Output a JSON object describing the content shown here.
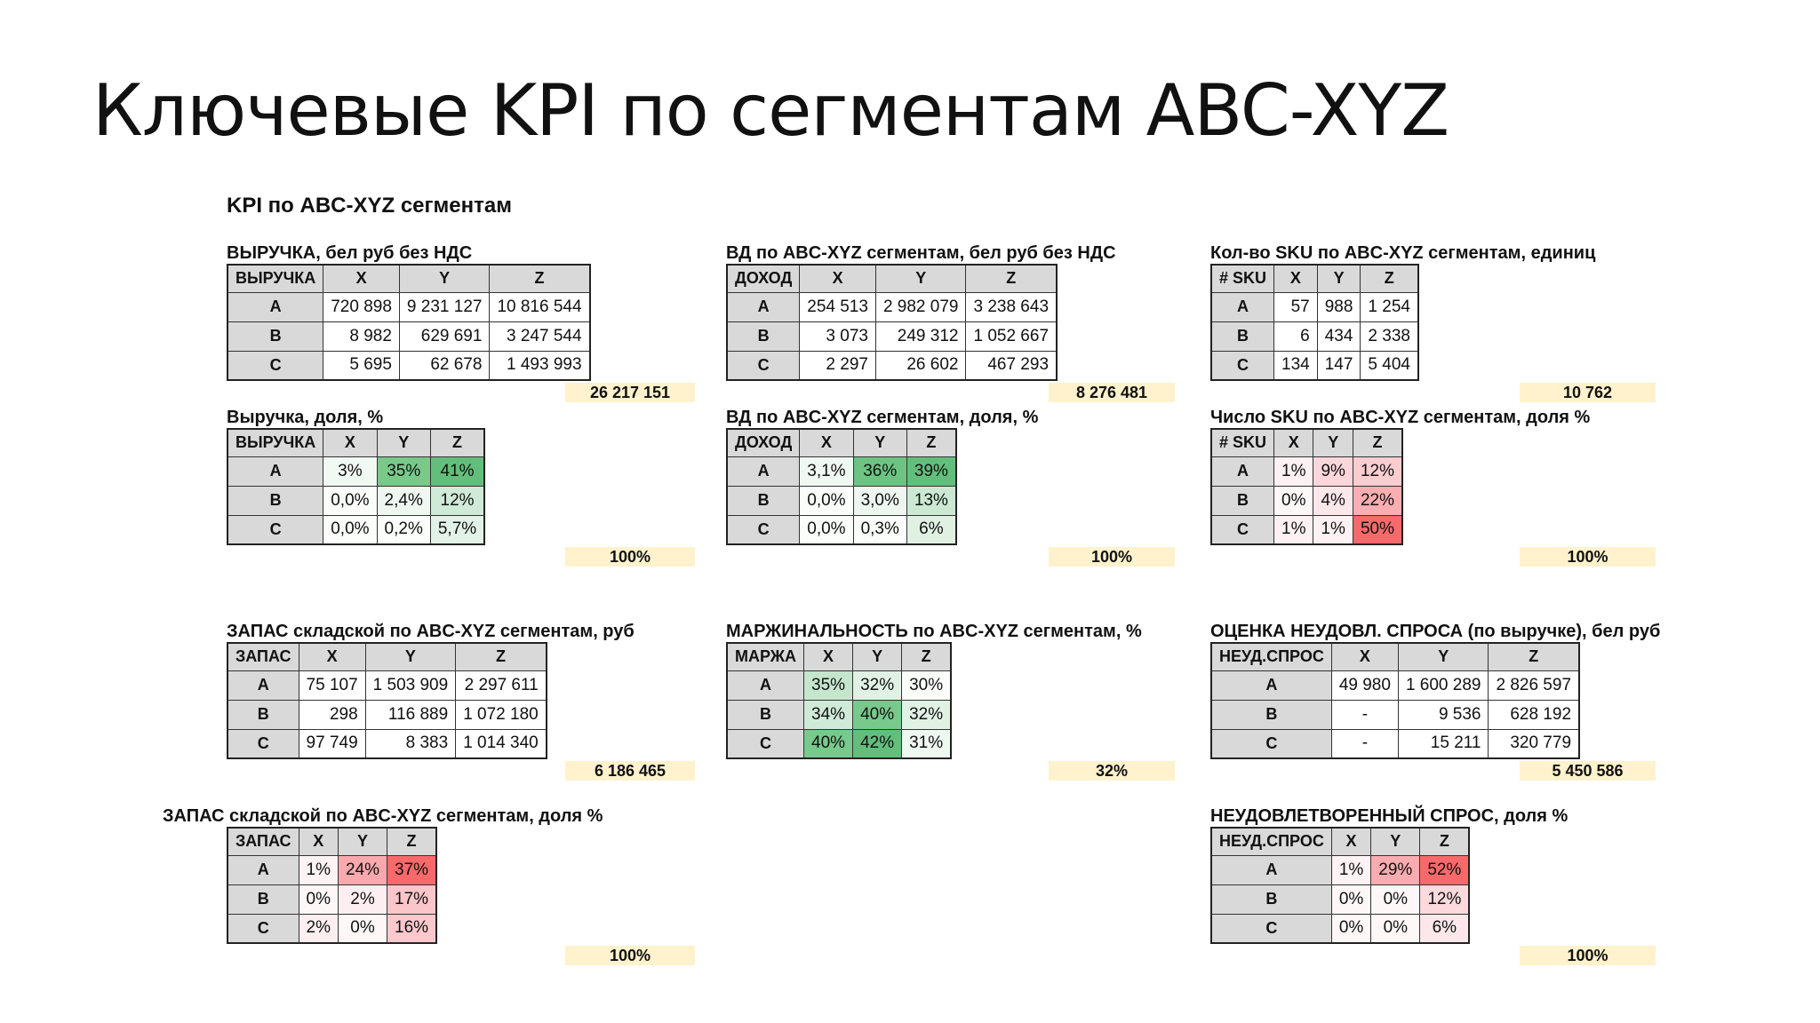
{
  "slide_title": "Ключевые KPI по сегментам ABC-XYZ",
  "sheet_title": "KPI по ABC-XYZ сегментам",
  "colors": {
    "header_bg": "#d9d9d9",
    "total_bg": "#fff2cc",
    "green_scale": "#63be7b",
    "red_scale": "#f8696b"
  },
  "tables": [
    {
      "title": "ВЫРУЧКА, бел руб без НДС",
      "corner": "ВЫРУЧКА",
      "cols": [
        "X",
        "Y",
        "Z"
      ],
      "align": "num",
      "rows": [
        {
          "label": "A",
          "cells": [
            "720 898",
            "9 231 127",
            "10 816 544"
          ]
        },
        {
          "label": "B",
          "cells": [
            "8 982",
            "629 691",
            "3 247 544"
          ]
        },
        {
          "label": "C",
          "cells": [
            "5 695",
            "62 678",
            "1 493 993"
          ]
        }
      ],
      "bg": [
        [
          "#ffffff",
          "#ffffff",
          "#ffffff"
        ],
        [
          "#ffffff",
          "#ffffff",
          "#ffffff"
        ],
        [
          "#ffffff",
          "#ffffff",
          "#ffffff"
        ]
      ],
      "total": "26 217 151"
    },
    {
      "title": "ВД по ABC-XYZ сегментам, бел руб без НДС",
      "corner": "ДОХОД",
      "cols": [
        "X",
        "Y",
        "Z"
      ],
      "align": "num",
      "rows": [
        {
          "label": "A",
          "cells": [
            "254 513",
            "2 982 079",
            "3 238 643"
          ]
        },
        {
          "label": "B",
          "cells": [
            "3 073",
            "249 312",
            "1 052 667"
          ]
        },
        {
          "label": "C",
          "cells": [
            "2 297",
            "26 602",
            "467 293"
          ]
        }
      ],
      "bg": [
        [
          "#ffffff",
          "#ffffff",
          "#ffffff"
        ],
        [
          "#ffffff",
          "#ffffff",
          "#ffffff"
        ],
        [
          "#ffffff",
          "#ffffff",
          "#ffffff"
        ]
      ],
      "total": "8 276 481"
    },
    {
      "title": "Кол-во SKU по ABC-XYZ сегментам, единиц",
      "corner": "# SKU",
      "cols": [
        "X",
        "Y",
        "Z"
      ],
      "align": "num",
      "rows": [
        {
          "label": "A",
          "cells": [
            "57",
            "988",
            "1 254"
          ]
        },
        {
          "label": "B",
          "cells": [
            "6",
            "434",
            "2 338"
          ]
        },
        {
          "label": "C",
          "cells": [
            "134",
            "147",
            "5 404"
          ]
        }
      ],
      "bg": [
        [
          "#ffffff",
          "#ffffff",
          "#ffffff"
        ],
        [
          "#ffffff",
          "#ffffff",
          "#ffffff"
        ],
        [
          "#ffffff",
          "#ffffff",
          "#ffffff"
        ]
      ],
      "total": "10 762"
    },
    {
      "title": "Выручка, доля, %",
      "corner": "ВЫРУЧКА",
      "cols": [
        "X",
        "Y",
        "Z"
      ],
      "align": "ctr",
      "rows": [
        {
          "label": "A",
          "cells": [
            "3%",
            "35%",
            "41%"
          ]
        },
        {
          "label": "B",
          "cells": [
            "0,0%",
            "2,4%",
            "12%"
          ]
        },
        {
          "label": "C",
          "cells": [
            "0,0%",
            "0,2%",
            "5,7%"
          ]
        }
      ],
      "bg": [
        [
          "#f1f9f3",
          "#79c98a",
          "#63be7b"
        ],
        [
          "#fbfdfb",
          "#eef7f0",
          "#cfead6"
        ],
        [
          "#fbfdfb",
          "#fbfdfb",
          "#e2f2e6"
        ]
      ],
      "total": "100%"
    },
    {
      "title": "ВД по ABC-XYZ сегментам, доля, %",
      "corner": "ДОХОД",
      "cols": [
        "X",
        "Y",
        "Z"
      ],
      "align": "ctr",
      "rows": [
        {
          "label": "A",
          "cells": [
            "3,1%",
            "36%",
            "39%"
          ]
        },
        {
          "label": "B",
          "cells": [
            "0,0%",
            "3,0%",
            "13%"
          ]
        },
        {
          "label": "C",
          "cells": [
            "0,0%",
            "0,3%",
            "6%"
          ]
        }
      ],
      "bg": [
        [
          "#f0f8f2",
          "#6dc482",
          "#63be7b"
        ],
        [
          "#fbfdfb",
          "#edf7ef",
          "#cbe8d3"
        ],
        [
          "#fbfdfb",
          "#fbfdfb",
          "#e0f1e4"
        ]
      ],
      "total": "100%"
    },
    {
      "title": "Число SKU по ABC-XYZ сегментам, доля %",
      "corner": "# SKU",
      "cols": [
        "X",
        "Y",
        "Z"
      ],
      "align": "ctr",
      "rows": [
        {
          "label": "A",
          "cells": [
            "1%",
            "9%",
            "12%"
          ]
        },
        {
          "label": "B",
          "cells": [
            "0%",
            "4%",
            "22%"
          ]
        },
        {
          "label": "C",
          "cells": [
            "1%",
            "1%",
            "50%"
          ]
        }
      ],
      "bg": [
        [
          "#fdf1f3",
          "#fbd6da",
          "#fbcdd1"
        ],
        [
          "#fdf7f8",
          "#fce7ea",
          "#f9aeb2"
        ],
        [
          "#fdf1f3",
          "#fdf1f3",
          "#f8696b"
        ]
      ],
      "total": "100%"
    },
    {
      "title": "ЗАПАС складской по ABC-XYZ сегментам, руб",
      "corner": "ЗАПАС",
      "cols": [
        "X",
        "Y",
        "Z"
      ],
      "align": "num",
      "rows": [
        {
          "label": "A",
          "cells": [
            "75 107",
            "1 503 909",
            "2 297 611"
          ]
        },
        {
          "label": "B",
          "cells": [
            "298",
            "116 889",
            "1 072 180"
          ]
        },
        {
          "label": "C",
          "cells": [
            "97 749",
            "8 383",
            "1 014 340"
          ]
        }
      ],
      "bg": [
        [
          "#ffffff",
          "#ffffff",
          "#ffffff"
        ],
        [
          "#ffffff",
          "#ffffff",
          "#ffffff"
        ],
        [
          "#ffffff",
          "#ffffff",
          "#ffffff"
        ]
      ],
      "total": "6 186 465"
    },
    {
      "title": "МАРЖИНАЛЬНОСТЬ по ABC-XYZ сегментам, %",
      "corner": "МАРЖА",
      "cols": [
        "X",
        "Y",
        "Z"
      ],
      "align": "ctr",
      "rows": [
        {
          "label": "A",
          "cells": [
            "35%",
            "32%",
            "30%"
          ]
        },
        {
          "label": "B",
          "cells": [
            "34%",
            "40%",
            "32%"
          ]
        },
        {
          "label": "C",
          "cells": [
            "40%",
            "42%",
            "31%"
          ]
        }
      ],
      "bg": [
        [
          "#c5e6cd",
          "#e1f2e5",
          "#fbfdfb"
        ],
        [
          "#cfead6",
          "#78c98c",
          "#e1f2e5"
        ],
        [
          "#78c98c",
          "#63be7b",
          "#eef7f0"
        ]
      ],
      "total": "32%"
    },
    {
      "title": "ОЦЕНКА НЕУДОВЛ. СПРОСА (по выручке), бел руб",
      "corner": "НЕУД.СПРОС",
      "cols": [
        "X",
        "Y",
        "Z"
      ],
      "align": "num",
      "rows": [
        {
          "label": "A",
          "cells": [
            "49 980",
            "1 600 289",
            "2 826 597"
          ]
        },
        {
          "label": "B",
          "cells": [
            "-",
            "9 536",
            "628 192"
          ]
        },
        {
          "label": "C",
          "cells": [
            "-",
            "15 211",
            "320 779"
          ]
        }
      ],
      "bg": [
        [
          "#ffffff",
          "#ffffff",
          "#ffffff"
        ],
        [
          "#ffffff",
          "#ffffff",
          "#ffffff"
        ],
        [
          "#ffffff",
          "#ffffff",
          "#ffffff"
        ]
      ],
      "total": "5 450 586"
    },
    {
      "title": "ЗАПАС складской по ABC-XYZ сегментам, доля %",
      "corner": "ЗАПАС",
      "cols": [
        "X",
        "Y",
        "Z"
      ],
      "align": "ctr",
      "rows": [
        {
          "label": "A",
          "cells": [
            "1%",
            "24%",
            "37%"
          ]
        },
        {
          "label": "B",
          "cells": [
            "0%",
            "2%",
            "17%"
          ]
        },
        {
          "label": "C",
          "cells": [
            "2%",
            "0%",
            "16%"
          ]
        }
      ],
      "bg": [
        [
          "#fdf2f4",
          "#f9a9ad",
          "#f8696b"
        ],
        [
          "#fdf7f8",
          "#fdeff1",
          "#fbc6ca"
        ],
        [
          "#fdeff1",
          "#fdf7f8",
          "#fbc9cd"
        ]
      ],
      "total": "100%"
    },
    {
      "title": "НЕУДОВЛЕТВОРЕННЫЙ СПРОС, доля %",
      "corner": "НЕУД.СПРОС",
      "cols": [
        "X",
        "Y",
        "Z"
      ],
      "align": "ctr",
      "rows": [
        {
          "label": "A",
          "cells": [
            "1%",
            "29%",
            "52%"
          ]
        },
        {
          "label": "B",
          "cells": [
            "0%",
            "0%",
            "12%"
          ]
        },
        {
          "label": "C",
          "cells": [
            "0%",
            "0%",
            "6%"
          ]
        }
      ],
      "bg": [
        [
          "#fdf2f4",
          "#f9acb0",
          "#f8696b"
        ],
        [
          "#fdf7f8",
          "#fdf7f8",
          "#fbd9dc"
        ],
        [
          "#fdf7f8",
          "#fdf7f8",
          "#fce8ea"
        ]
      ],
      "total": "100%"
    }
  ]
}
